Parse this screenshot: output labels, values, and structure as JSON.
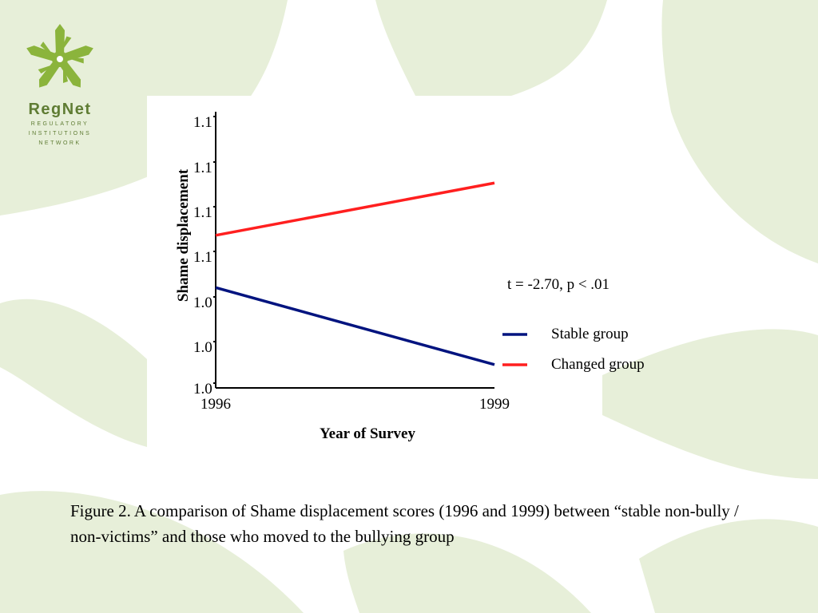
{
  "logo": {
    "name": "RegNet",
    "subtitle_lines": [
      "REGULATORY",
      "INSTITUTIONS",
      "NETWORK"
    ]
  },
  "colors": {
    "background_shapes": "#e7efd9",
    "logo_green": "#8bb43c",
    "logo_text": "#5f7c33",
    "stable_series": "#00137f",
    "changed_series": "#ff1f1f"
  },
  "chart_data": {
    "type": "line",
    "title": "",
    "xlabel": "Year of Survey",
    "ylabel": "Shame displacement",
    "x": [
      "1996",
      "1999"
    ],
    "yticks": [
      "1.0",
      "1.0",
      "1.0",
      "1.1",
      "1.1",
      "1.1",
      "1.1"
    ],
    "annotation": "t = -2.70, p < .01",
    "legend_position": "right",
    "series": [
      {
        "name": "Stable group",
        "color": "#00137f",
        "values": [
          1.059,
          1.006
        ]
      },
      {
        "name": "Changed group",
        "color": "#ff1f1f",
        "values": [
          1.095,
          1.131
        ]
      }
    ],
    "ylim": [
      0.99,
      1.18
    ]
  },
  "caption": "Figure 2. A comparison of Shame displacement scores (1996 and 1999) between “stable non-bully / non-victims” and those who moved to the bullying group"
}
